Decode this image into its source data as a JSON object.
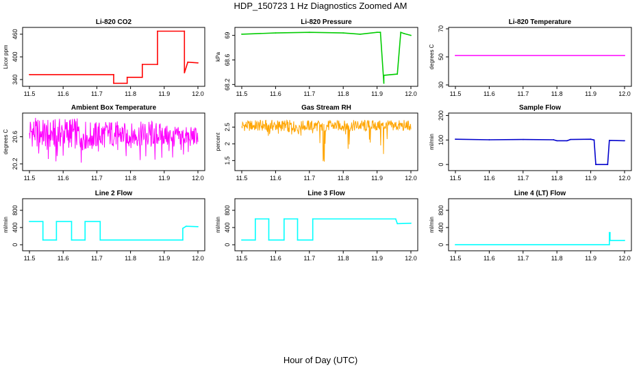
{
  "page": {
    "title": "HDP_150723  1 Hz Diagnostics Zoomed AM",
    "xlabel": "Hour of Day (UTC)"
  },
  "chart_data": [
    {
      "type": "line",
      "title": "Li-820 CO2",
      "ylabel": "Licor ppm",
      "color": "#ff0000",
      "xlim": [
        11.5,
        12.0
      ],
      "ylim": [
        322,
        478
      ],
      "xticks": [
        11.5,
        11.6,
        11.7,
        11.8,
        11.9,
        12.0
      ],
      "yticks": [
        340,
        400,
        460
      ],
      "series": [
        {
          "x": [
            11.5,
            11.75,
            11.75,
            11.79,
            11.79,
            11.835,
            11.835,
            11.88,
            11.88,
            11.96,
            11.96,
            11.97,
            12.0
          ],
          "y": [
            353,
            353,
            330,
            330,
            346,
            346,
            380,
            380,
            468,
            468,
            358,
            386,
            384
          ]
        }
      ]
    },
    {
      "type": "line",
      "title": "Li-820 Pressure",
      "ylabel": "kPa",
      "color": "#00cc00",
      "xlim": [
        11.5,
        12.0
      ],
      "ylim": [
        68.17,
        69.13
      ],
      "xticks": [
        11.5,
        11.6,
        11.7,
        11.8,
        11.9,
        12.0
      ],
      "yticks": [
        68.2,
        68.6,
        69.0
      ],
      "series": [
        {
          "x": [
            11.5,
            11.6,
            11.7,
            11.8,
            11.85,
            11.9,
            11.91,
            11.92,
            11.92,
            11.96,
            11.97,
            11.98,
            12.0
          ],
          "y": [
            69.02,
            69.04,
            69.05,
            69.04,
            69.02,
            69.05,
            69.05,
            68.22,
            68.35,
            68.37,
            69.05,
            69.03,
            69.0
          ]
        }
      ]
    },
    {
      "type": "line",
      "title": "Li-820 Temperature",
      "ylabel": "degrees C",
      "color": "#ff00ff",
      "xlim": [
        11.5,
        12.0
      ],
      "ylim": [
        29,
        71
      ],
      "xticks": [
        11.5,
        11.6,
        11.7,
        11.8,
        11.9,
        12.0
      ],
      "yticks": [
        30,
        50,
        70
      ],
      "series": [
        {
          "x": [
            11.5,
            12.0
          ],
          "y": [
            51,
            51
          ]
        }
      ]
    },
    {
      "type": "line",
      "title": "Ambient Box Temperature",
      "ylabel": "degrees C",
      "color": "#ff00ff",
      "xlim": [
        11.5,
        12.0
      ],
      "ylim": [
        20.1,
        20.95
      ],
      "xticks": [
        11.5,
        11.6,
        11.7,
        11.8,
        11.9,
        12.0
      ],
      "yticks": [
        20.2,
        20.6
      ],
      "series": [
        {
          "x": [
            11.5,
            11.56,
            11.62,
            11.68,
            11.74,
            11.8,
            11.86,
            11.92,
            11.98,
            12.0
          ],
          "y": [
            20.62,
            20.58,
            20.6,
            20.55,
            20.6,
            20.57,
            20.6,
            20.58,
            20.56,
            20.58
          ],
          "y_low": [
            20.2,
            20.25,
            20.2,
            20.22,
            20.2,
            20.25,
            20.2,
            20.28,
            20.3,
            20.3
          ],
          "y_high": [
            20.9,
            20.85,
            20.9,
            20.82,
            20.85,
            20.8,
            20.85,
            20.75,
            20.75,
            20.75
          ]
        }
      ]
    },
    {
      "type": "line",
      "title": "Gas Stream RH",
      "ylabel": "percent",
      "color": "#ffa500",
      "xlim": [
        11.5,
        12.0
      ],
      "ylim": [
        1.2,
        2.92
      ],
      "xticks": [
        11.5,
        11.6,
        11.7,
        11.8,
        11.9,
        12.0
      ],
      "yticks": [
        1.5,
        2.0,
        2.5
      ],
      "series": [
        {
          "x": [
            11.5,
            11.56,
            11.62,
            11.68,
            11.74,
            11.8,
            11.86,
            11.92,
            11.98,
            12.0
          ],
          "y": [
            2.5,
            2.5,
            2.5,
            2.5,
            2.5,
            2.5,
            2.5,
            2.5,
            2.5,
            2.5
          ],
          "y_low": [
            2.3,
            2.3,
            2.1,
            2.2,
            1.4,
            1.6,
            2.2,
            1.3,
            2.2,
            2.3
          ],
          "y_high": [
            2.7,
            2.72,
            2.72,
            2.7,
            2.72,
            2.7,
            2.72,
            2.7,
            2.72,
            2.7
          ]
        }
      ]
    },
    {
      "type": "line",
      "title": "Sample Flow",
      "ylabel": "ml/min",
      "color": "#0000cc",
      "xlim": [
        11.5,
        12.0
      ],
      "ylim": [
        -25,
        210
      ],
      "xticks": [
        11.5,
        11.6,
        11.7,
        11.8,
        11.9,
        12.0
      ],
      "yticks": [
        0,
        100,
        200
      ],
      "series": [
        {
          "x": [
            11.5,
            11.6,
            11.7,
            11.79,
            11.8,
            11.83,
            11.84,
            11.9,
            11.91,
            11.915,
            11.95,
            11.955,
            12.0
          ],
          "y": [
            103,
            101,
            102,
            101,
            97,
            97,
            102,
            103,
            100,
            0,
            0,
            98,
            97
          ]
        }
      ]
    },
    {
      "type": "line",
      "title": "Line 2 Flow",
      "ylabel": "ml/min",
      "color": "#00ffff",
      "xlim": [
        11.5,
        12.0
      ],
      "ylim": [
        -140,
        1070
      ],
      "xticks": [
        11.5,
        11.6,
        11.7,
        11.8,
        11.9,
        12.0
      ],
      "yticks": [
        0,
        400,
        800
      ],
      "series": [
        {
          "x": [
            11.5,
            11.54,
            11.54,
            11.58,
            11.58,
            11.625,
            11.625,
            11.665,
            11.665,
            11.71,
            11.71,
            11.955,
            11.955,
            11.965,
            12.0
          ],
          "y": [
            540,
            540,
            110,
            110,
            540,
            540,
            110,
            110,
            540,
            540,
            110,
            110,
            380,
            430,
            420
          ]
        }
      ]
    },
    {
      "type": "line",
      "title": "Line 3 Flow",
      "ylabel": "ml/min",
      "color": "#00ffff",
      "xlim": [
        11.5,
        12.0
      ],
      "ylim": [
        -140,
        1070
      ],
      "xticks": [
        11.5,
        11.6,
        11.7,
        11.8,
        11.9,
        12.0
      ],
      "yticks": [
        0,
        400,
        800
      ],
      "series": [
        {
          "x": [
            11.5,
            11.54,
            11.54,
            11.58,
            11.58,
            11.625,
            11.625,
            11.665,
            11.665,
            11.71,
            11.71,
            11.955,
            11.96,
            12.0
          ],
          "y": [
            110,
            110,
            600,
            600,
            110,
            110,
            600,
            600,
            110,
            110,
            600,
            600,
            490,
            500
          ]
        }
      ]
    },
    {
      "type": "line",
      "title": "Line 4 (LT) Flow",
      "ylabel": "ml/min",
      "color": "#00ffff",
      "xlim": [
        11.5,
        12.0
      ],
      "ylim": [
        -140,
        1070
      ],
      "xticks": [
        11.5,
        11.6,
        11.7,
        11.8,
        11.9,
        12.0
      ],
      "yticks": [
        0,
        400,
        800
      ],
      "series": [
        {
          "x": [
            11.5,
            11.955,
            11.955,
            11.957,
            11.957,
            12.0
          ],
          "y": [
            0,
            0,
            280,
            280,
            100,
            100
          ]
        }
      ]
    }
  ]
}
